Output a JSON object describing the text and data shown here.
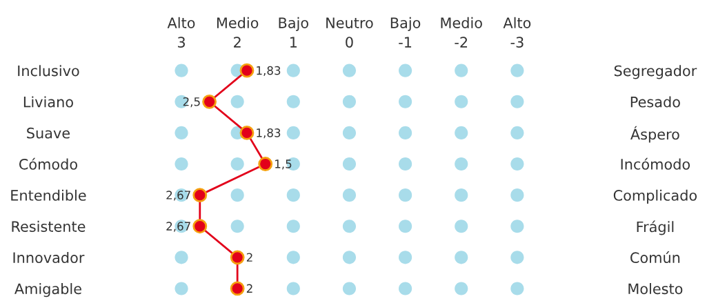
{
  "chart_data": {
    "type": "line",
    "orientation": "horizontal",
    "categories": [
      "Inclusivo",
      "Liviano",
      "Suave",
      "Cómodo",
      "Entendible",
      "Resistente",
      "Innovador",
      "Amigable"
    ],
    "y2_categories": [
      "Segregador",
      "Pesado",
      "Áspero",
      "Incómodo",
      "Complicado",
      "Frágil",
      "Común",
      "Molesto"
    ],
    "series": [
      {
        "type": "scatter",
        "color": "#a8dcea",
        "values": [
          3,
          3,
          3,
          3,
          3,
          3,
          3,
          3
        ]
      },
      {
        "type": "scatter",
        "color": "#a8dcea",
        "values": [
          2,
          2,
          2,
          2,
          2,
          2,
          null,
          null
        ]
      },
      {
        "type": "scatter",
        "color": "#a8dcea",
        "values": [
          1,
          1,
          1,
          1,
          1,
          1,
          1,
          1
        ]
      },
      {
        "type": "scatter",
        "color": "#a8dcea",
        "values": [
          0,
          0,
          0,
          0,
          0,
          0,
          0,
          0
        ]
      },
      {
        "type": "scatter",
        "color": "#a8dcea",
        "values": [
          -1,
          -1,
          -1,
          -1,
          -1,
          -1,
          -1,
          -1
        ]
      },
      {
        "type": "scatter",
        "color": "#a8dcea",
        "values": [
          -2,
          -2,
          -2,
          -2,
          -2,
          -2,
          -2,
          -2
        ]
      },
      {
        "type": "scatter",
        "color": "#a8dcea",
        "values": [
          -3,
          -3,
          -3,
          -3,
          -3,
          -3,
          -3,
          -3
        ]
      },
      {
        "color": "#e2001a",
        "values": [
          1.83,
          2.5,
          1.83,
          1.5,
          2.67,
          2.67,
          2,
          2
        ],
        "value_labels": [
          "1,83",
          "2,5",
          "1,83",
          "1,5",
          "2,67",
          "2,67",
          "2",
          "2"
        ]
      }
    ],
    "xlim": [
      3,
      -3
    ],
    "xticks": [
      {
        "value": 3,
        "label": "Alto\n3"
      },
      {
        "value": 2,
        "label": "Medio\n2"
      },
      {
        "value": 1,
        "label": "Bajo\n1"
      },
      {
        "value": 0,
        "label": "Neutro\n0"
      },
      {
        "value": -1,
        "label": "Bajo\n-1"
      },
      {
        "value": -2,
        "label": "Medio\n-2"
      },
      {
        "value": -3,
        "label": "Alto\n-3"
      }
    ],
    "marker": "circle",
    "line_style": "solid",
    "legend": false
  }
}
